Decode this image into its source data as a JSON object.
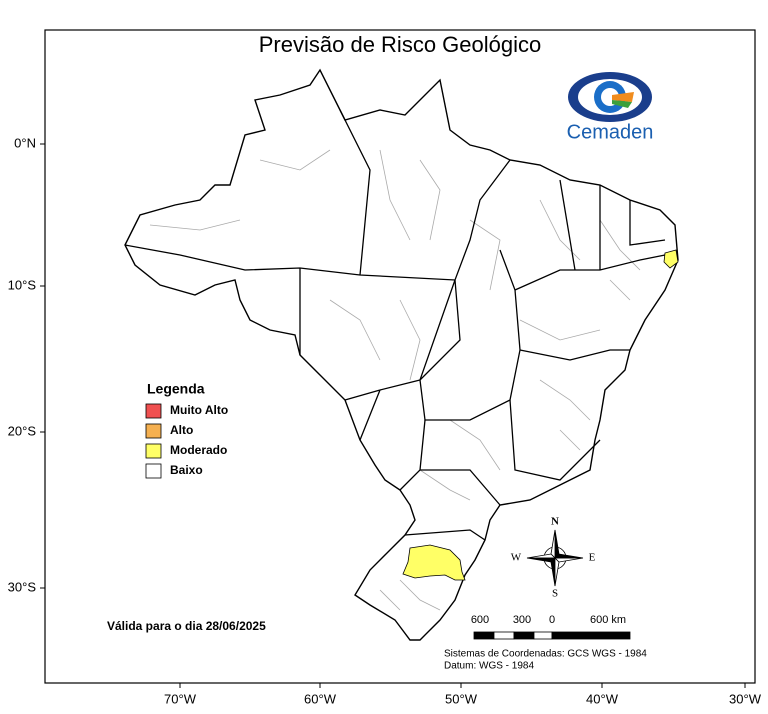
{
  "header": {
    "title": "Previsão de Risco Geológico"
  },
  "logo": {
    "text": "Cemaden"
  },
  "axes": {
    "lat": [
      "0°N",
      "10°S",
      "20°S",
      "30°S"
    ],
    "lon": [
      "70°W",
      "60°W",
      "50°W",
      "40°W",
      "30°W"
    ]
  },
  "legend": {
    "title": "Legenda",
    "items": [
      {
        "label": "Muito Alto",
        "color": "#f05050"
      },
      {
        "label": "Alto",
        "color": "#f5b050"
      },
      {
        "label": "Moderado",
        "color": "#ffff66"
      },
      {
        "label": "Baixo",
        "color": "#ffffff"
      }
    ]
  },
  "validity": "Válida para o dia 28/06/2025",
  "compass": {
    "n": "N",
    "s": "S",
    "w": "W",
    "e": "E"
  },
  "scale": {
    "labels": [
      "600",
      "300",
      "0",
      "600 km"
    ]
  },
  "footer": [
    "Sistemas de Coordenadas: GCS WGS - 1984",
    "Datum: WGS - 1984"
  ]
}
